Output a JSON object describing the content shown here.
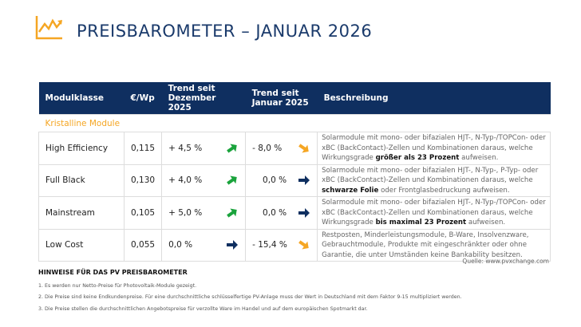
{
  "header": {
    "title": "PREISBAROMETER – JANUAR 2026",
    "logo_icon": "trend-chart-icon",
    "accent": "#f5a623",
    "brand": "#0f2f60"
  },
  "table": {
    "columns": [
      "Modulklasse",
      "€/Wp",
      "Trend seit Dezember 2025",
      "Trend seit Januar 2025",
      "Beschreibung"
    ],
    "columns_split": [
      [
        "Modulklasse"
      ],
      [
        "€/Wp"
      ],
      [
        "Trend seit",
        "Dezember 2025"
      ],
      [
        "Trend seit",
        "Januar 2025"
      ],
      [
        "Beschreibung"
      ]
    ],
    "section": "Kristalline Module",
    "rows": [
      {
        "name": "High Efficiency",
        "price": "0,115",
        "trend_month": "+ 4,5 %",
        "trend_month_dir": "up",
        "trend_year": "- 8,0 %",
        "trend_year_dir": "down",
        "desc_pre": "Solarmodule mit mono- oder bifazialen HJT-, N-Typ-/TOPCon- oder xBC (BackContact)-Zellen und Kombinationen daraus, welche Wirkungsgrade ",
        "desc_bold": "größer als 23 Prozent",
        "desc_post": " aufweisen."
      },
      {
        "name": "Full Black",
        "price": "0,130",
        "trend_month": "+ 4,0 %",
        "trend_month_dir": "up",
        "trend_year": "0,0 %",
        "trend_year_dir": "flat",
        "desc_pre": "Solarmodule mit mono- oder bifazialen HJT-, N-Typ-, P-Typ- oder xBC (BackContact)-Zellen und Kombinationen daraus, welche ",
        "desc_bold": "schwarze Folie",
        "desc_post": " oder Frontglasbedruckung aufweisen."
      },
      {
        "name": "Mainstream",
        "price": "0,105",
        "trend_month": "+ 5,0 %",
        "trend_month_dir": "up",
        "trend_year": "0,0 %",
        "trend_year_dir": "flat",
        "desc_pre": "Solarmodule mit mono- oder bifazialen HJT-, N-Typ-/TOPCon- oder xBC (BackContact)-Zellen und Kombinationen daraus, welche Wirkungsgrade ",
        "desc_bold": "bis maximal 23 Prozent",
        "desc_post": " aufweisen."
      },
      {
        "name": "Low Cost",
        "price": "0,055",
        "trend_month": "0,0 %",
        "trend_month_dir": "flat",
        "trend_year": "- 15,4 %",
        "trend_year_dir": "down",
        "desc_pre": "Restposten, Minderleistungsmodule, B-Ware, Insolvenzware, Gebrauchtmodule, Produkte mit eingeschränkter oder ohne Garantie, die unter Umständen keine Bankability besitzen.",
        "desc_bold": "",
        "desc_post": ""
      }
    ],
    "arrow_colors": {
      "up": "#1aa33c",
      "down": "#f5a623",
      "flat": "#0f2f60"
    }
  },
  "source": "Quelle: www.pvxchange.com",
  "notes": {
    "title": "HINWEISE FÜR DAS PV PREISBAROMETER",
    "items": [
      "1.  Es werden nur Netto-Preise für Photovoltaik-Module gezeigt.",
      "2. Die Preise sind keine Endkundenpreise. Für eine durchschnittliche schlüsselfertige PV-Anlage muss der Wert in Deutschland mit dem Faktor 9-15 multipliziert werden.",
      "3. Die Preise stellen die durchschnittlichen Angebotspreise für verzollte Ware im Handel und auf dem europäischen Spotmarkt dar."
    ]
  }
}
